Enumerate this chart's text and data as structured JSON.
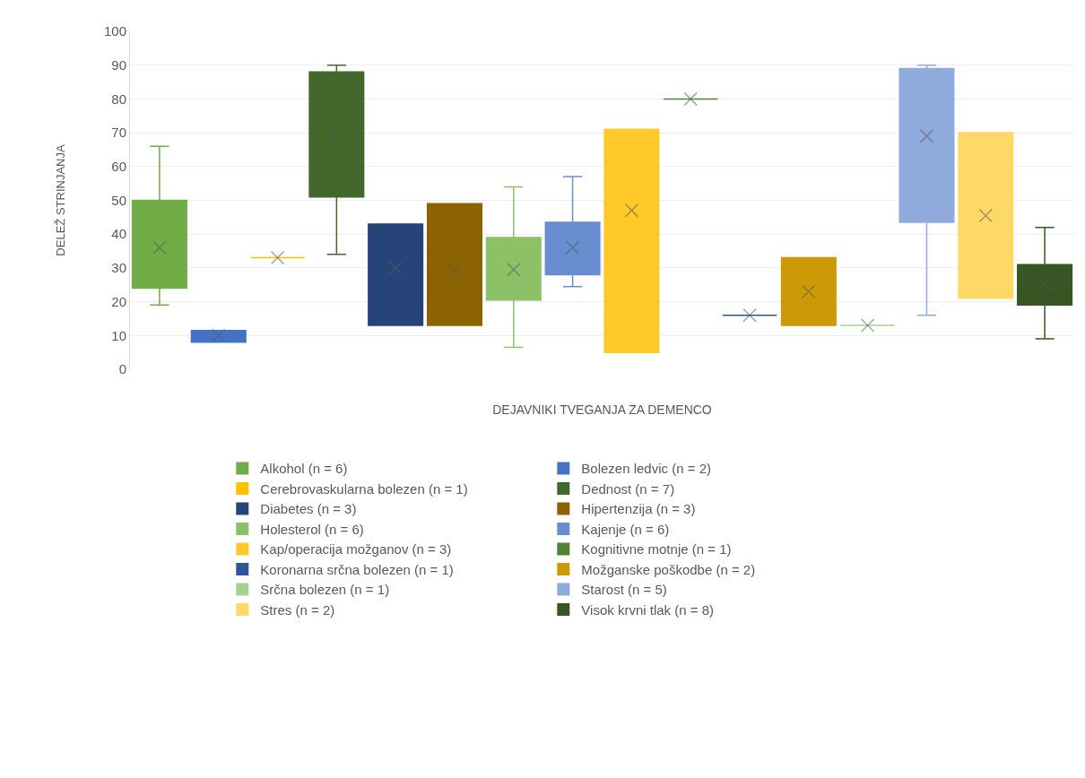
{
  "chart_data": {
    "type": "box",
    "xlabel": "DEJAVNIKI TVEGANJA ZA DEMENCO",
    "ylabel": "DELEŽ STRINJANJA",
    "ylim": [
      0,
      100
    ],
    "yticks": [
      0,
      10,
      20,
      30,
      40,
      50,
      60,
      70,
      80,
      90,
      100
    ],
    "grid": "y",
    "legend": "bottom",
    "tick_labels": "y",
    "marker": "cross",
    "categories": [
      null,
      null,
      null,
      null,
      null,
      null,
      null,
      null,
      null,
      null,
      null,
      null,
      null,
      null,
      null,
      null
    ],
    "series": [
      {
        "name": "Alkohol (n = 6)",
        "color": "#70ad47",
        "boxes": [
          {
            "low": 19,
            "q1": 24,
            "median": 32,
            "q3": 50,
            "high": 66,
            "mean": 36
          },
          null,
          null,
          null,
          null,
          null,
          null,
          null,
          null,
          null,
          null,
          null,
          null,
          null,
          null,
          null
        ]
      },
      {
        "name": "Bolezen ledvic (n = 2)",
        "color": "#4472c4",
        "boxes": [
          null,
          {
            "low": 8,
            "q1": 8,
            "median": 10,
            "q3": 11.5,
            "high": 11.5,
            "mean": 10
          },
          null,
          null,
          null,
          null,
          null,
          null,
          null,
          null,
          null,
          null,
          null,
          null,
          null,
          null
        ]
      },
      {
        "name": "Cerebrovaskularna bolezen (n = 1)",
        "color": "#ffc000",
        "boxes": [
          null,
          null,
          {
            "low": 33,
            "q1": 33,
            "median": 33,
            "q3": 33,
            "high": 33,
            "mean": 33
          },
          null,
          null,
          null,
          null,
          null,
          null,
          null,
          null,
          null,
          null,
          null,
          null,
          null
        ]
      },
      {
        "name": "Dednost (n = 7)",
        "color": "#43682b",
        "boxes": [
          null,
          null,
          null,
          {
            "low": 34,
            "q1": 51,
            "median": 78,
            "q3": 88,
            "high": 90,
            "mean": 69
          },
          null,
          null,
          null,
          null,
          null,
          null,
          null,
          null,
          null,
          null,
          null,
          null
        ]
      },
      {
        "name": "Diabetes (n = 3)",
        "color": "#264478",
        "boxes": [
          null,
          null,
          null,
          null,
          {
            "low": 13,
            "q1": 13,
            "median": 33,
            "q3": 43,
            "high": 43,
            "mean": 30
          },
          null,
          null,
          null,
          null,
          null,
          null,
          null,
          null,
          null,
          null,
          null
        ]
      },
      {
        "name": "Hipertenzija (n = 3)",
        "color": "#8b6300",
        "boxes": [
          null,
          null,
          null,
          null,
          null,
          {
            "low": 13,
            "q1": 13,
            "median": 27,
            "q3": 49,
            "high": 49,
            "mean": 29.5
          },
          null,
          null,
          null,
          null,
          null,
          null,
          null,
          null,
          null,
          null
        ]
      },
      {
        "name": "Holesterol (n = 6)",
        "color": "#8cc168",
        "boxes": [
          null,
          null,
          null,
          null,
          null,
          null,
          {
            "low": 6.5,
            "q1": 20.5,
            "median": 28,
            "q3": 39,
            "high": 54,
            "mean": 29.5
          },
          null,
          null,
          null,
          null,
          null,
          null,
          null,
          null,
          null
        ]
      },
      {
        "name": "Kajenje (n = 6)",
        "color": "#698ed0",
        "boxes": [
          null,
          null,
          null,
          null,
          null,
          null,
          null,
          {
            "low": 24.5,
            "q1": 28,
            "median": 34,
            "q3": 43.5,
            "high": 57,
            "mean": 36
          },
          null,
          null,
          null,
          null,
          null,
          null,
          null,
          null
        ]
      },
      {
        "name": "Kap/operacija možganov (n = 3)",
        "color": "#ffc929",
        "boxes": [
          null,
          null,
          null,
          null,
          null,
          null,
          null,
          null,
          {
            "low": 5,
            "q1": 5,
            "median": 66,
            "q3": 71,
            "high": 71,
            "mean": 47
          },
          null,
          null,
          null,
          null,
          null,
          null,
          null
        ]
      },
      {
        "name": "Kognitivne motnje (n = 1)",
        "color": "#548235",
        "boxes": [
          null,
          null,
          null,
          null,
          null,
          null,
          null,
          null,
          null,
          {
            "low": 80,
            "q1": 80,
            "median": 80,
            "q3": 80,
            "high": 80,
            "mean": 80
          },
          null,
          null,
          null,
          null,
          null,
          null
        ]
      },
      {
        "name": "Koronarna srčna bolezen (n = 1)",
        "color": "#2f5597",
        "boxes": [
          null,
          null,
          null,
          null,
          null,
          null,
          null,
          null,
          null,
          null,
          {
            "low": 16,
            "q1": 16,
            "median": 16,
            "q3": 16,
            "high": 16,
            "mean": 16
          },
          null,
          null,
          null,
          null,
          null
        ]
      },
      {
        "name": "Možganske poškodbe (n = 2)",
        "color": "#cc9a06",
        "boxes": [
          null,
          null,
          null,
          null,
          null,
          null,
          null,
          null,
          null,
          null,
          null,
          {
            "low": 13,
            "q1": 13,
            "median": 23,
            "q3": 33,
            "high": 33,
            "mean": 23
          },
          null,
          null,
          null,
          null
        ]
      },
      {
        "name": "Srčna bolezen (n = 1)",
        "color": "#a9d18e",
        "boxes": [
          null,
          null,
          null,
          null,
          null,
          null,
          null,
          null,
          null,
          null,
          null,
          null,
          {
            "low": 13,
            "q1": 13,
            "median": 13,
            "q3": 13,
            "high": 13,
            "mean": 13
          },
          null,
          null,
          null
        ]
      },
      {
        "name": "Starost (n = 5)",
        "color": "#8faadc",
        "boxes": [
          null,
          null,
          null,
          null,
          null,
          null,
          null,
          null,
          null,
          null,
          null,
          null,
          null,
          {
            "low": 16,
            "q1": 43.5,
            "median": 79,
            "q3": 89,
            "high": 90,
            "mean": 69
          },
          null,
          null
        ]
      },
      {
        "name": "Stres (n = 2)",
        "color": "#ffd966",
        "boxes": [
          null,
          null,
          null,
          null,
          null,
          null,
          null,
          null,
          null,
          null,
          null,
          null,
          null,
          null,
          {
            "low": 21,
            "q1": 21,
            "median": 45.5,
            "q3": 70,
            "high": 70,
            "mean": 45.5
          },
          null
        ]
      },
      {
        "name": "Visok krvni tlak (n = 8)",
        "color": "#375623",
        "boxes": [
          null,
          null,
          null,
          null,
          null,
          null,
          null,
          null,
          null,
          null,
          null,
          null,
          null,
          null,
          null,
          {
            "low": 9,
            "q1": 19,
            "median": 22,
            "q3": 31,
            "high": 42,
            "mean": 25
          }
        ]
      }
    ]
  }
}
